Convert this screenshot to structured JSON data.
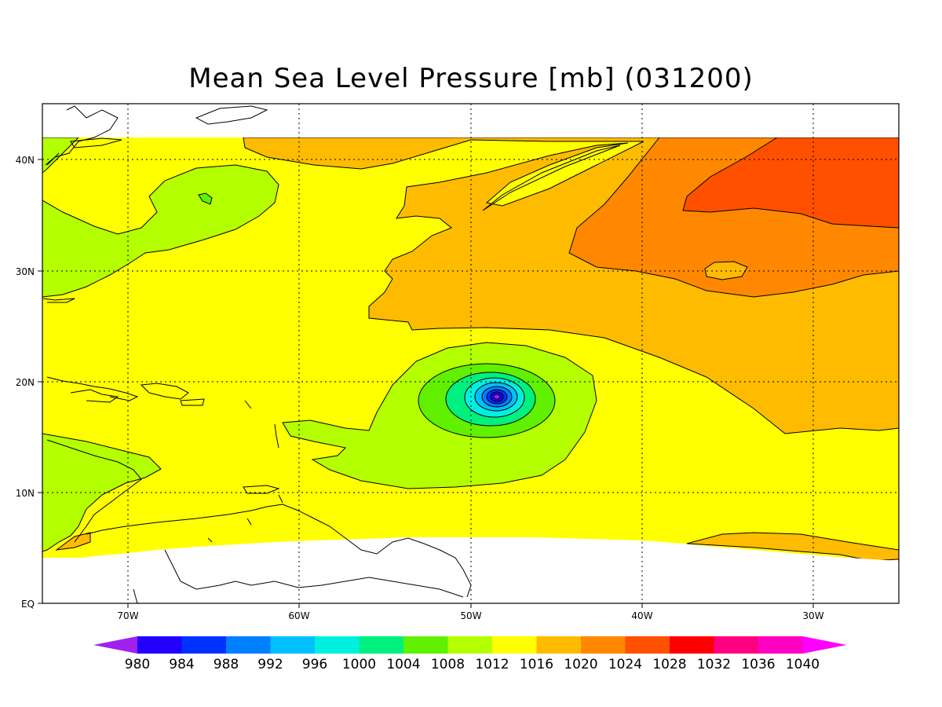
{
  "title": "Mean Sea Level Pressure [mb] (031200)",
  "lat_labels": [
    "40N",
    "30N",
    "20N",
    "10N",
    "EQ"
  ],
  "lon_labels": [
    "70W",
    "60W",
    "50W",
    "40W",
    "30W"
  ],
  "colorbar": {
    "labels": [
      "980",
      "984",
      "988",
      "992",
      "996",
      "1000",
      "1004",
      "1008",
      "1012",
      "1016",
      "1020",
      "1024",
      "1028",
      "1032",
      "1036",
      "1040"
    ],
    "colors": [
      "#a020f0",
      "#2200ff",
      "#0032ff",
      "#0080ff",
      "#00c0ff",
      "#00f0e0",
      "#00f080",
      "#60f000",
      "#b4ff00",
      "#ffff00",
      "#ffbb00",
      "#ff8800",
      "#ff5000",
      "#ff0000",
      "#ff0080",
      "#ff00c0",
      "#ff00ff"
    ]
  },
  "map_colors": {
    "land_outline": "#000000",
    "no_data": "#ffffff",
    "contour": "#000000"
  }
}
